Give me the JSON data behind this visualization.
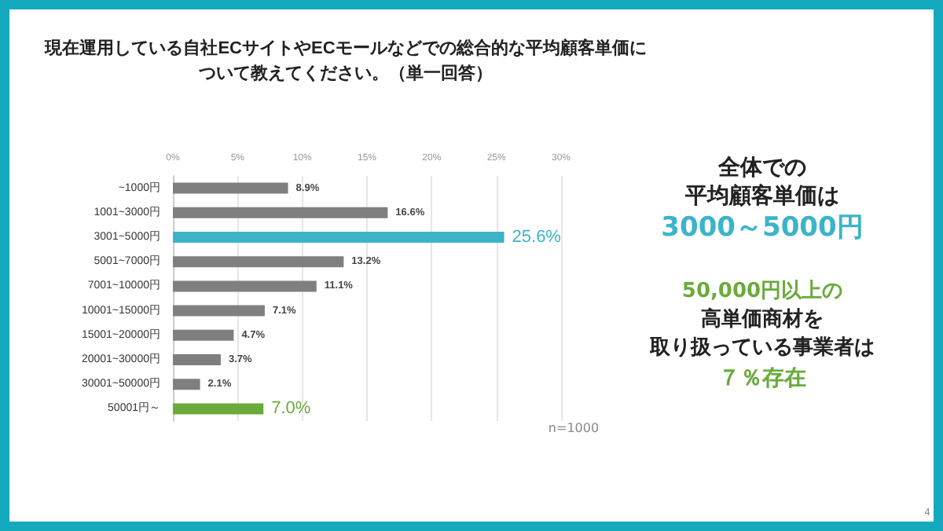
{
  "chart_data": {
    "type": "bar",
    "orientation": "horizontal",
    "title": "現在運用している自社ECサイトやECモールなどでの総合的な平均顧客単価について教えてください。（単一回答）",
    "categories": [
      "~1000円",
      "1001~3000円",
      "3001~5000円",
      "5001~7000円",
      "7001~10000円",
      "10001~15000円",
      "15001~20000円",
      "20001~30000円",
      "30001~50000円",
      "50001円～"
    ],
    "values": [
      8.9,
      16.6,
      25.6,
      13.2,
      11.1,
      7.1,
      4.7,
      3.7,
      2.1,
      7.0
    ],
    "value_labels": [
      "8.9%",
      "16.6%",
      "25.6%",
      "13.2%",
      "11.1%",
      "7.1%",
      "4.7%",
      "3.7%",
      "2.1%",
      "7.0%"
    ],
    "colors": [
      "#7f7f7f",
      "#7f7f7f",
      "#3cb4c8",
      "#7f7f7f",
      "#7f7f7f",
      "#7f7f7f",
      "#7f7f7f",
      "#7f7f7f",
      "#7f7f7f",
      "#6aab3c"
    ],
    "xlim": [
      0,
      30
    ],
    "xticks": [
      {
        "value": 0,
        "label": "0%"
      },
      {
        "value": 5,
        "label": "5%"
      },
      {
        "value": 10,
        "label": "10%"
      },
      {
        "value": 15,
        "label": "15%"
      },
      {
        "value": 20,
        "label": "20%"
      },
      {
        "value": 25,
        "label": "25%"
      },
      {
        "value": 30,
        "label": "30%"
      }
    ],
    "grid": "x",
    "annotations": [
      "全体での",
      "平均顧客単価は",
      "3000～5000円",
      "50,000円以上の",
      "高単価商材を",
      "取り扱っている事業者は",
      "７％存在",
      "n=1000",
      "4"
    ]
  }
}
